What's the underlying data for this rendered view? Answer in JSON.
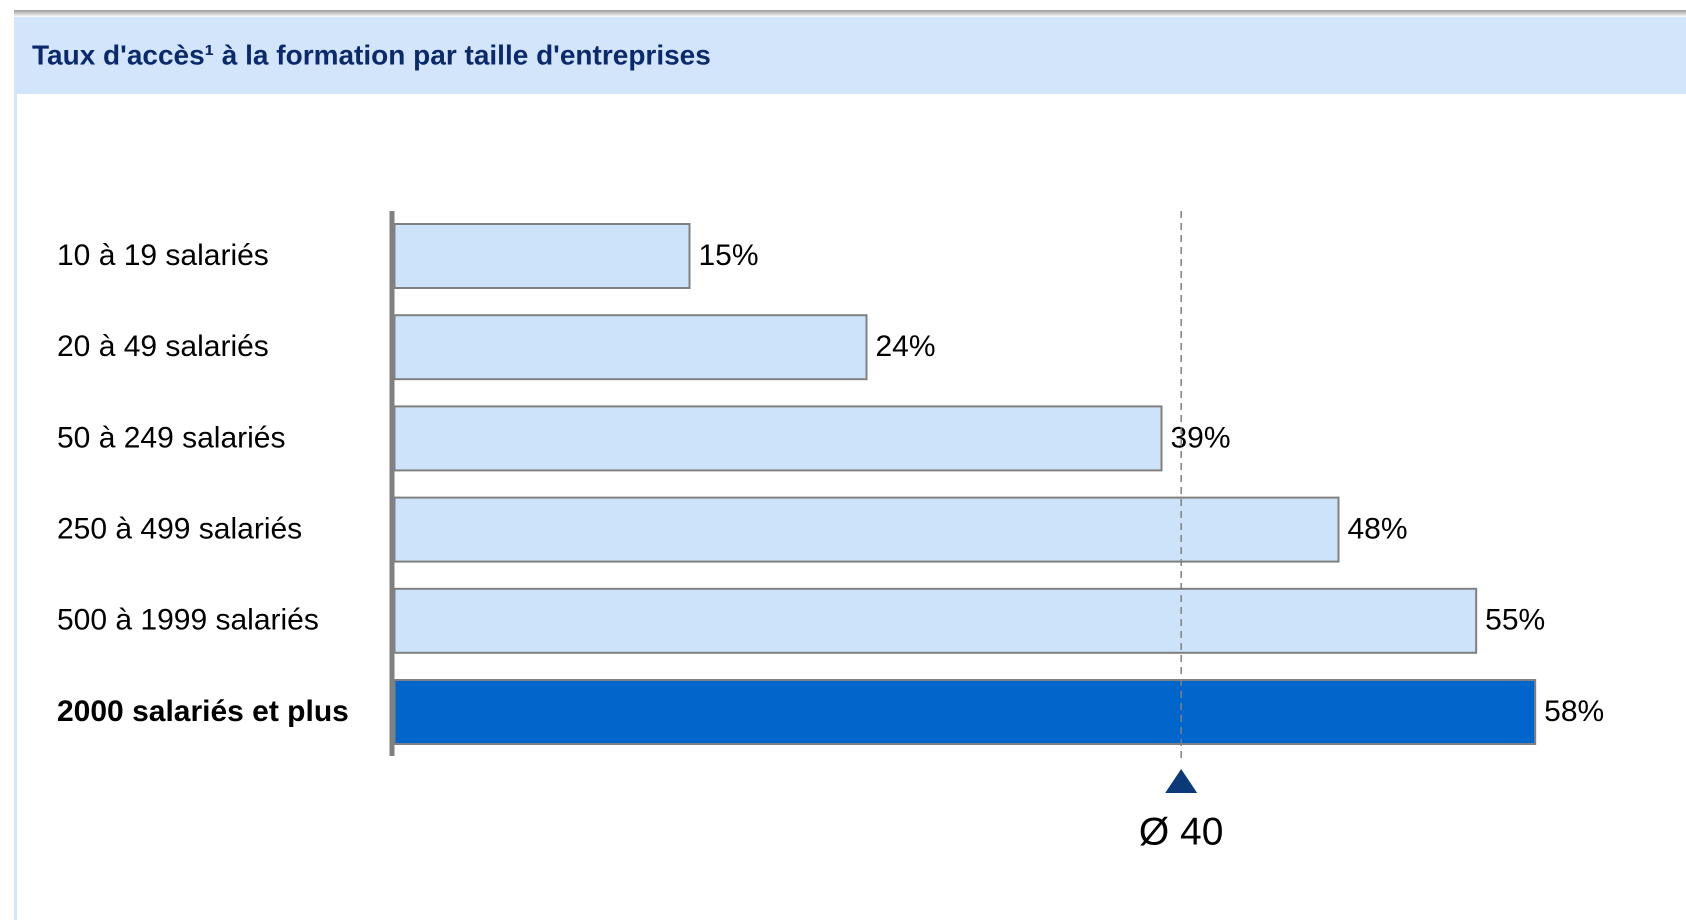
{
  "chart_data": {
    "type": "bar",
    "orientation": "horizontal",
    "title": "Taux d'accès¹ à la formation par taille d'entreprises",
    "categories": [
      "10 à 19 salariés",
      "20 à 49 salariés",
      "50 à 249 salariés",
      "250 à 499 salariés",
      "500 à 1999 salariés",
      "2000 salariés et plus"
    ],
    "values": [
      15,
      24,
      39,
      48,
      55,
      58
    ],
    "value_labels": [
      "15%",
      "24%",
      "39%",
      "48%",
      "55%",
      "58%"
    ],
    "colors": [
      "#cce3fa",
      "#cce3fa",
      "#cce3fa",
      "#cce3fa",
      "#cce3fa",
      "#0066cc"
    ],
    "xlim": [
      0,
      60
    ],
    "average": {
      "value": 40,
      "label": "Ø 40"
    },
    "grid": false
  }
}
